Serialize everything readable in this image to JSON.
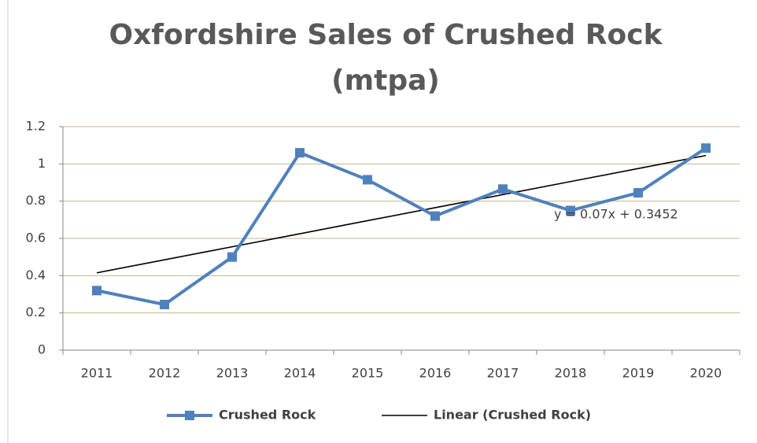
{
  "chart_data": {
    "type": "line",
    "title": [
      "Oxfordshire Sales of Crushed Rock",
      "(mtpa)"
    ],
    "categories": [
      "2011",
      "2012",
      "2013",
      "2014",
      "2015",
      "2016",
      "2017",
      "2018",
      "2019",
      "2020"
    ],
    "series": [
      {
        "name": "Crushed Rock",
        "color": "#4f81bd",
        "values": [
          0.32,
          0.245,
          0.5,
          1.06,
          0.915,
          0.72,
          0.865,
          0.75,
          0.845,
          1.085
        ],
        "marker": "square"
      },
      {
        "name": "Linear (Crushed Rock)",
        "color": "#000000",
        "values": [
          0.4152,
          0.4852,
          0.5552,
          0.6252,
          0.6952,
          0.7652,
          0.8352,
          0.9052,
          0.9752,
          1.0452
        ]
      }
    ],
    "annotations": [
      "y = 0.07x + 0.3452"
    ],
    "ylim": [
      0,
      1.2
    ],
    "yticks": [
      0,
      0.2,
      0.4,
      0.6,
      0.8,
      1,
      1.2
    ],
    "grid": true,
    "legend": "bottom"
  }
}
